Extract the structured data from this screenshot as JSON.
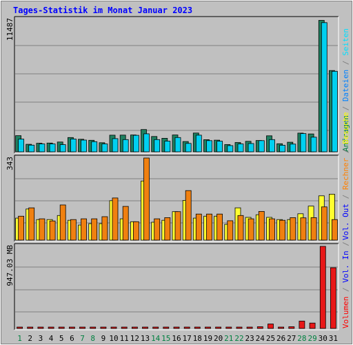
{
  "chart_data": {
    "title": "Tages-Statistik im Monat Januar 2023",
    "categories": [
      "1",
      "2",
      "3",
      "4",
      "5",
      "6",
      "7",
      "8",
      "9",
      "10",
      "11",
      "12",
      "13",
      "14",
      "15",
      "16",
      "17",
      "18",
      "19",
      "20",
      "21",
      "22",
      "23",
      "24",
      "25",
      "26",
      "27",
      "28",
      "29",
      "30",
      "31"
    ],
    "weekend_days": [
      1,
      7,
      8,
      14,
      15,
      21,
      22,
      28,
      29
    ],
    "colors": {
      "title": "#0000ff",
      "background": "#c0c0c0",
      "grid": "#808080",
      "weekday_label": "#000000",
      "weekend_label": "#008040",
      "anfragen": "#008040",
      "dateien": "#0080ff",
      "seiten": "#00e0ff",
      "besuche": "#ffff00",
      "rechner": "#ff8000",
      "vol_out": "#0000ff",
      "vol_in": "#0000ff",
      "volumen": "#ff0000",
      "bar_anfragen": "#1e8060",
      "bar_seiten": "#00d0f0",
      "bar_besuche": "#ffff30",
      "bar_rechner": "#f08010",
      "bar_volumen": "#e81818"
    },
    "charts": [
      {
        "type": "bar",
        "panel": "top",
        "ymax_label": "11487",
        "ymax": 11487,
        "right_label_parts": [
          {
            "text": "Anfragen",
            "color_key": "anfragen"
          },
          {
            "text": " / ",
            "color_key": "grid"
          },
          {
            "text": "Dateien",
            "color_key": "dateien"
          },
          {
            "text": " / ",
            "color_key": "grid"
          },
          {
            "text": "Seiten",
            "color_key": "seiten"
          }
        ],
        "series": [
          {
            "name": "Anfragen",
            "color_key": "bar_anfragen",
            "values": [
              1400,
              650,
              740,
              760,
              850,
              1240,
              1090,
              1000,
              790,
              1440,
              1450,
              1460,
              1930,
              1330,
              1170,
              1460,
              890,
              1630,
              1050,
              1010,
              630,
              810,
              910,
              980,
              1390,
              700,
              830,
              1620,
              1550,
              11400,
              7050
            ]
          },
          {
            "name": "Dateien",
            "values": []
          },
          {
            "name": "Seiten",
            "color_key": "bar_seiten",
            "values": [
              1100,
              580,
              680,
              680,
              620,
              1110,
              1020,
              880,
              680,
              1140,
              1060,
              1430,
              1560,
              1060,
              930,
              1240,
              730,
              1440,
              970,
              920,
              540,
              680,
              720,
              970,
              1060,
              570,
              670,
              1580,
              1270,
              11200,
              6980
            ]
          }
        ]
      },
      {
        "type": "bar",
        "panel": "middle",
        "ymax_label": "343",
        "ymax": 343,
        "right_label_parts": [
          {
            "text": "Vol. Out",
            "color_key": "vol_out"
          },
          {
            "text": " / ",
            "color_key": "grid"
          },
          {
            "text": "Rechner",
            "color_key": "rechner"
          },
          {
            "text": " / ",
            "color_key": "grid"
          },
          {
            "text": "Besuche",
            "color_key": "besuche"
          }
        ],
        "series": [
          {
            "name": "Besuche",
            "color_key": "bar_besuche",
            "values": [
              92,
              130,
              86,
              86,
              103,
              83,
              63,
              69,
              69,
              165,
              89,
              77,
              247,
              75,
              83,
              119,
              166,
              92,
              100,
              100,
              66,
              135,
              95,
              106,
              95,
              86,
              86,
              110,
              142,
              185,
              192
            ]
          },
          {
            "name": "Rechner",
            "color_key": "bar_rechner",
            "values": [
              100,
              135,
              89,
              80,
              147,
              86,
              89,
              89,
              98,
              176,
              141,
              77,
              343,
              89,
              94,
              119,
              207,
              109,
              109,
              109,
              81,
              103,
              89,
              120,
              89,
              83,
              94,
              93,
              94,
              139,
              86
            ]
          }
        ]
      },
      {
        "type": "bar",
        "panel": "bottom",
        "ymax_label": "947.03 MB",
        "ymax": 947.03,
        "right_label_parts": [
          {
            "text": "Volumen",
            "color_key": "volumen"
          },
          {
            "text": " / ",
            "color_key": "grid"
          },
          {
            "text": "Vol. In",
            "color_key": "vol_in"
          },
          {
            "text": " / ",
            "color_key": "grid"
          }
        ],
        "series": [
          {
            "name": "Volumen",
            "color_key": "bar_volumen",
            "values": [
              6,
              6,
              6,
              6,
              6,
              6,
              6,
              6,
              6,
              6,
              6,
              6,
              6,
              6,
              6,
              6,
              6,
              6,
              6,
              6,
              8,
              16,
              16,
              20,
              52,
              16,
              20,
              85,
              62,
              947.03,
              700
            ]
          }
        ]
      }
    ]
  }
}
